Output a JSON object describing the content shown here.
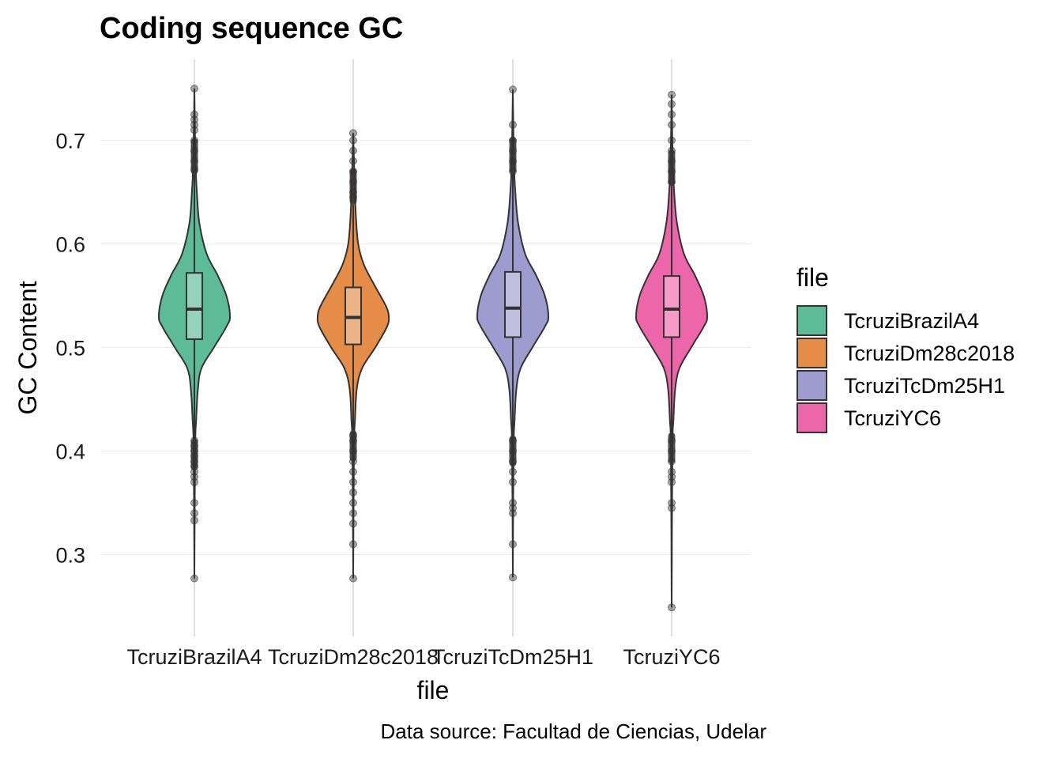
{
  "chart_data": {
    "type": "violin",
    "title": "Coding sequence GC",
    "xlabel": "file",
    "ylabel": "GC Content",
    "caption": "Data source: Facultad de Ciencias, Udelar",
    "categories": [
      "TcruziBrazilA4",
      "TcruziDm28c2018",
      "TcruziTcDm25H1",
      "TcruziYC6"
    ],
    "yticks": [
      0.3,
      0.4,
      0.5,
      0.6,
      0.7
    ],
    "ylim": [
      0.22,
      0.78
    ],
    "grid": true,
    "legend": {
      "title": "file",
      "position": "right",
      "entries": [
        "TcruziBrazilA4",
        "TcruziDm28c2018",
        "TcruziTcDm25H1",
        "TcruziYC6"
      ]
    },
    "series": [
      {
        "color": "#5DBB9A",
        "box": {
          "q1": 0.508,
          "median": 0.537,
          "q3": 0.572,
          "whisker_low": 0.412,
          "whisker_high": 0.667
        },
        "outliers_low": [
          0.277,
          0.333,
          0.34,
          0.35,
          0.37,
          0.375,
          0.38,
          0.385,
          0.39,
          0.395,
          0.4,
          0.405,
          0.41
        ],
        "outliers_high": [
          0.672,
          0.68,
          0.69,
          0.7,
          0.71,
          0.715,
          0.72,
          0.725,
          0.75
        ],
        "violin": [
          [
            0.277,
            0
          ],
          [
            0.4,
            0.02
          ],
          [
            0.43,
            0.05
          ],
          [
            0.46,
            0.1
          ],
          [
            0.48,
            0.2
          ],
          [
            0.5,
            0.55
          ],
          [
            0.52,
            0.9
          ],
          [
            0.53,
            1.0
          ],
          [
            0.55,
            0.9
          ],
          [
            0.57,
            0.65
          ],
          [
            0.59,
            0.35
          ],
          [
            0.62,
            0.14
          ],
          [
            0.65,
            0.07
          ],
          [
            0.67,
            0.04
          ],
          [
            0.7,
            0.02
          ],
          [
            0.75,
            0
          ]
        ]
      },
      {
        "color": "#E48C48",
        "box": {
          "q1": 0.503,
          "median": 0.529,
          "q3": 0.558,
          "whisker_low": 0.42,
          "whisker_high": 0.638
        },
        "outliers_low": [
          0.277,
          0.31,
          0.33,
          0.34,
          0.35,
          0.36,
          0.37,
          0.38,
          0.39,
          0.4,
          0.41,
          0.415
        ],
        "outliers_high": [
          0.645,
          0.65,
          0.66,
          0.67,
          0.68,
          0.69,
          0.7,
          0.707
        ],
        "violin": [
          [
            0.277,
            0
          ],
          [
            0.4,
            0.02
          ],
          [
            0.43,
            0.05
          ],
          [
            0.46,
            0.1
          ],
          [
            0.48,
            0.25
          ],
          [
            0.5,
            0.62
          ],
          [
            0.52,
            0.95
          ],
          [
            0.53,
            1.0
          ],
          [
            0.54,
            0.92
          ],
          [
            0.56,
            0.6
          ],
          [
            0.58,
            0.3
          ],
          [
            0.6,
            0.14
          ],
          [
            0.63,
            0.07
          ],
          [
            0.67,
            0.03
          ],
          [
            0.707,
            0
          ]
        ]
      },
      {
        "color": "#9E9CCE",
        "box": {
          "q1": 0.51,
          "median": 0.538,
          "q3": 0.573,
          "whisker_low": 0.415,
          "whisker_high": 0.668
        },
        "outliers_low": [
          0.278,
          0.31,
          0.34,
          0.345,
          0.35,
          0.37,
          0.38,
          0.39,
          0.4,
          0.41
        ],
        "outliers_high": [
          0.67,
          0.68,
          0.69,
          0.7,
          0.715,
          0.749
        ],
        "violin": [
          [
            0.278,
            0
          ],
          [
            0.4,
            0.02
          ],
          [
            0.43,
            0.05
          ],
          [
            0.46,
            0.1
          ],
          [
            0.48,
            0.22
          ],
          [
            0.5,
            0.55
          ],
          [
            0.52,
            0.9
          ],
          [
            0.53,
            1.0
          ],
          [
            0.55,
            0.9
          ],
          [
            0.57,
            0.65
          ],
          [
            0.59,
            0.35
          ],
          [
            0.62,
            0.15
          ],
          [
            0.65,
            0.07
          ],
          [
            0.68,
            0.03
          ],
          [
            0.749,
            0
          ]
        ]
      },
      {
        "color": "#EE66AA",
        "box": {
          "q1": 0.51,
          "median": 0.537,
          "q3": 0.569,
          "whisker_low": 0.418,
          "whisker_high": 0.656
        },
        "outliers_low": [
          0.249,
          0.345,
          0.35,
          0.37,
          0.375,
          0.38,
          0.39,
          0.4,
          0.41
        ],
        "outliers_high": [
          0.66,
          0.67,
          0.68,
          0.69,
          0.7,
          0.715,
          0.725,
          0.735,
          0.744
        ],
        "violin": [
          [
            0.249,
            0
          ],
          [
            0.4,
            0.02
          ],
          [
            0.43,
            0.05
          ],
          [
            0.46,
            0.1
          ],
          [
            0.48,
            0.22
          ],
          [
            0.5,
            0.55
          ],
          [
            0.52,
            0.9
          ],
          [
            0.53,
            1.0
          ],
          [
            0.55,
            0.9
          ],
          [
            0.57,
            0.65
          ],
          [
            0.59,
            0.35
          ],
          [
            0.62,
            0.15
          ],
          [
            0.65,
            0.07
          ],
          [
            0.68,
            0.03
          ],
          [
            0.744,
            0
          ]
        ]
      }
    ]
  }
}
